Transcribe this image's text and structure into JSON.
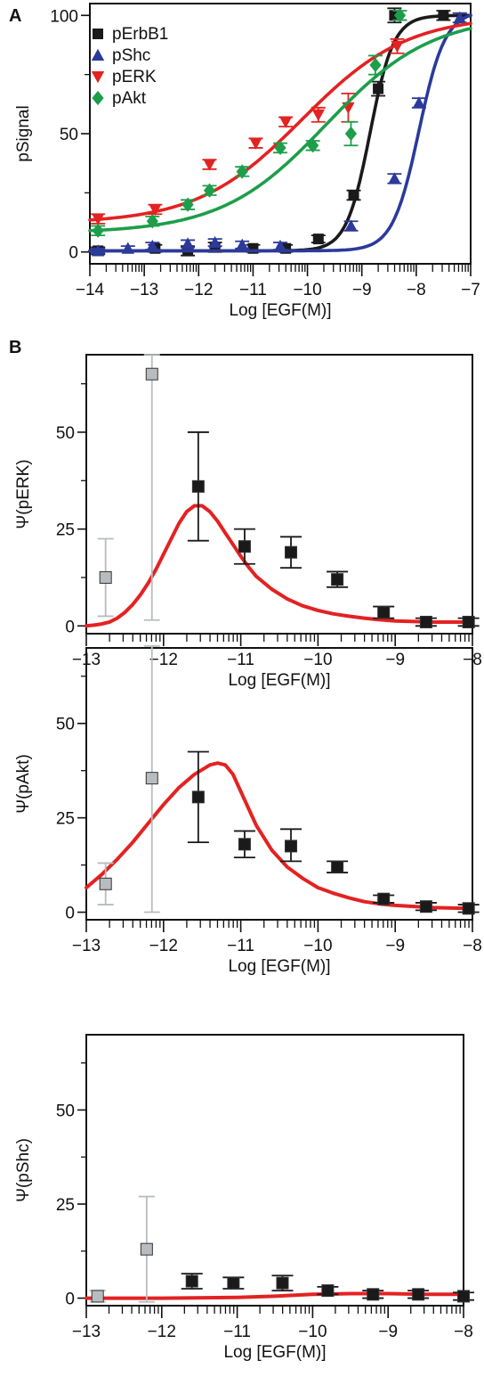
{
  "chart_data": [
    {
      "panel_label": "A",
      "type": "scatter",
      "xlabel": "Log [EGF(M)]",
      "ylabel": "pSignal",
      "xlim": [
        -14,
        -7
      ],
      "ylim": [
        -5,
        105
      ],
      "x_ticks": [
        -14,
        -13,
        -12,
        -11,
        -10,
        -9,
        -8,
        -7
      ],
      "y_ticks": [
        0,
        50,
        100
      ],
      "legend_position": "top-left",
      "series": [
        {
          "name": "pErbB1",
          "color": "#1a1a1a",
          "marker": "square",
          "points": [
            [
              -13.85,
              0.5
            ],
            [
              -12.8,
              1.5
            ],
            [
              -12.2,
              0.5
            ],
            [
              -11.7,
              2
            ],
            [
              -11,
              1.5
            ],
            [
              -10.4,
              1.5
            ],
            [
              -9.8,
              5.5
            ],
            [
              -9.15,
              24
            ],
            [
              -8.7,
              69
            ],
            [
              -8.4,
              100
            ],
            [
              -7.5,
              100
            ]
          ],
          "errors": [
            1.5,
            1.5,
            2,
            2,
            1.5,
            1.5,
            1.5,
            2,
            3,
            3,
            2
          ],
          "fit": {
            "bottom": 0.5,
            "top": 100,
            "logEC50": -8.85,
            "hill": 2.0
          }
        },
        {
          "name": "pShc",
          "color": "#2b3a9b",
          "marker": "triangle-up",
          "points": [
            [
              -13.85,
              0.5
            ],
            [
              -13.3,
              1.5
            ],
            [
              -12.85,
              2.5
            ],
            [
              -12.2,
              3.5
            ],
            [
              -11.7,
              4
            ],
            [
              -11.2,
              3
            ],
            [
              -10.5,
              2.5
            ],
            [
              -9.2,
              11
            ],
            [
              -8.4,
              31
            ],
            [
              -7.95,
              63
            ],
            [
              -7.2,
              99
            ]
          ],
          "errors": [
            1,
            1,
            1.5,
            1.5,
            1.5,
            1.5,
            1.5,
            2,
            2,
            2,
            2
          ],
          "fit": {
            "bottom": 0.5,
            "top": 102,
            "logEC50": -7.95,
            "hill": 1.8
          }
        },
        {
          "name": "pERK",
          "color": "#e32222",
          "marker": "triangle-down",
          "points": [
            [
              -13.85,
              14
            ],
            [
              -12.8,
              18
            ],
            [
              -11.8,
              37
            ],
            [
              -10.95,
              46
            ],
            [
              -10.4,
              55
            ],
            [
              -9.8,
              58
            ],
            [
              -9.25,
              61
            ],
            [
              -8.35,
              87
            ]
          ],
          "errors": [
            2,
            2,
            2,
            2,
            2,
            3,
            6,
            3
          ],
          "fit": {
            "bottom": 12,
            "top": 100,
            "logEC50": -10.1,
            "hill": 0.45
          }
        },
        {
          "name": "pAkt",
          "color": "#1d9e4a",
          "marker": "diamond",
          "points": [
            [
              -13.85,
              9
            ],
            [
              -12.85,
              13
            ],
            [
              -12.2,
              20
            ],
            [
              -11.8,
              26
            ],
            [
              -11.2,
              34
            ],
            [
              -10.5,
              44
            ],
            [
              -9.9,
              45
            ],
            [
              -9.2,
              50
            ],
            [
              -8.75,
              79
            ],
            [
              -8.3,
              100
            ]
          ],
          "errors": [
            2,
            2,
            2,
            2,
            2,
            2,
            2,
            5,
            4,
            2
          ],
          "fit": {
            "bottom": 8,
            "top": 100,
            "logEC50": -9.65,
            "hill": 0.45
          }
        }
      ]
    },
    {
      "panel_label": "B",
      "type": "scatter",
      "xlabel": "Log [EGF(M)]",
      "ylabel": "Ψ(pERK)",
      "xlim": [
        -13,
        -8
      ],
      "ylim": [
        -2,
        70
      ],
      "x_ticks": [
        -13,
        -12,
        -11,
        -10,
        -9,
        -8
      ],
      "y_ticks": [
        0,
        25,
        50
      ],
      "points": [
        [
          -12.75,
          12.5
        ],
        [
          -12.15,
          65
        ],
        [
          -11.55,
          36
        ],
        [
          -10.95,
          20.5
        ],
        [
          -10.35,
          19
        ],
        [
          -9.75,
          12
        ],
        [
          -9.15,
          3.5
        ],
        [
          -8.6,
          1
        ],
        [
          -8.05,
          1
        ]
      ],
      "errors_low": [
        10,
        63.5,
        14,
        4.5,
        4,
        2,
        1.5,
        1,
        1
      ],
      "errors_high": [
        10,
        5,
        14,
        4.5,
        4,
        2,
        1.5,
        1,
        1
      ],
      "point_colors": [
        "#b8bcc0",
        "#b8bcc0",
        "#1a1a1a",
        "#1a1a1a",
        "#1a1a1a",
        "#1a1a1a",
        "#1a1a1a",
        "#1a1a1a",
        "#1a1a1a"
      ],
      "curve": {
        "x": [
          -13,
          -12.9,
          -12.8,
          -12.7,
          -12.6,
          -12.5,
          -12.4,
          -12.3,
          -12.2,
          -12.1,
          -12,
          -11.9,
          -11.8,
          -11.7,
          -11.6,
          -11.5,
          -11.4,
          -11.3,
          -11.2,
          -11.1,
          -11,
          -10.9,
          -10.8,
          -10.6,
          -10.4,
          -10.2,
          -10,
          -9.8,
          -9.6,
          -9.4,
          -9.2,
          -9,
          -8.5,
          -8
        ],
        "y": [
          0,
          0.2,
          0.5,
          1,
          2,
          3.5,
          5.5,
          8,
          11,
          14.5,
          18.5,
          22.5,
          26.5,
          29.5,
          31,
          31,
          29.5,
          27,
          24,
          21,
          18,
          15.2,
          12.8,
          9.5,
          7,
          5.2,
          4,
          3.1,
          2.5,
          2,
          1.6,
          1.3,
          1,
          1
        ],
        "color": "#e32222"
      }
    },
    {
      "type": "scatter",
      "xlabel": "Log [EGF(M)]",
      "ylabel": "Ψ(pAkt)",
      "xlim": [
        -13,
        -8
      ],
      "ylim": [
        -2,
        70
      ],
      "x_ticks": [
        -13,
        -12,
        -11,
        -10,
        -9,
        -8
      ],
      "y_ticks": [
        0,
        25,
        50
      ],
      "points": [
        [
          -12.75,
          7.5
        ],
        [
          -12.15,
          35.5
        ],
        [
          -11.55,
          30.5
        ],
        [
          -10.95,
          18
        ],
        [
          -10.35,
          17.5
        ],
        [
          -9.75,
          12
        ],
        [
          -9.15,
          3.5
        ],
        [
          -8.6,
          1.5
        ],
        [
          -8.05,
          1
        ]
      ],
      "errors_low": [
        5.5,
        35.5,
        12,
        3.5,
        4,
        1.5,
        1,
        1,
        1
      ],
      "errors_high": [
        5.5,
        35,
        12,
        3.5,
        4.5,
        1.5,
        1,
        1,
        1
      ],
      "point_colors": [
        "#b8bcc0",
        "#b8bcc0",
        "#1a1a1a",
        "#1a1a1a",
        "#1a1a1a",
        "#1a1a1a",
        "#1a1a1a",
        "#1a1a1a",
        "#1a1a1a"
      ],
      "curve": {
        "x": [
          -13,
          -12.8,
          -12.6,
          -12.4,
          -12.2,
          -12,
          -11.8,
          -11.6,
          -11.4,
          -11.3,
          -11.2,
          -11.1,
          -11,
          -10.9,
          -10.8,
          -10.6,
          -10.4,
          -10.2,
          -10,
          -9.8,
          -9.6,
          -9.4,
          -9.2,
          -9,
          -8.5,
          -8
        ],
        "y": [
          6.5,
          10,
          14,
          18.5,
          23.5,
          28.5,
          33,
          36.5,
          39,
          39.5,
          39,
          36.5,
          32,
          27.5,
          23,
          16.5,
          12,
          9,
          6.5,
          5,
          3.8,
          2.8,
          2.2,
          1.8,
          1.2,
          1
        ],
        "color": "#e32222"
      }
    },
    {
      "type": "scatter",
      "xlabel": "Log [EGF(M)]",
      "ylabel": "Ψ(pShc)",
      "xlim": [
        -13,
        -8
      ],
      "ylim": [
        -2,
        70
      ],
      "x_ticks": [
        -13,
        -12,
        -11,
        -10,
        -9,
        -8
      ],
      "y_ticks": [
        0,
        25,
        50
      ],
      "points": [
        [
          -12.85,
          0.5
        ],
        [
          -12.2,
          13
        ],
        [
          -11.6,
          4.5
        ],
        [
          -11.05,
          4
        ],
        [
          -10.4,
          4
        ],
        [
          -9.8,
          2
        ],
        [
          -9.2,
          1
        ],
        [
          -8.6,
          1
        ],
        [
          -8,
          0.5
        ]
      ],
      "errors_low": [
        1.5,
        14,
        2,
        1.5,
        2,
        1,
        1,
        1,
        1
      ],
      "errors_high": [
        1.5,
        14,
        2,
        1.5,
        2,
        1,
        1,
        1,
        1
      ],
      "point_colors": [
        "#b8bcc0",
        "#b8bcc0",
        "#1a1a1a",
        "#1a1a1a",
        "#1a1a1a",
        "#1a1a1a",
        "#1a1a1a",
        "#1a1a1a",
        "#1a1a1a"
      ],
      "curve": {
        "x": [
          -13,
          -12,
          -11,
          -10.5,
          -10,
          -9.5,
          -9,
          -8.5,
          -8
        ],
        "y": [
          0,
          0,
          0.2,
          0.5,
          1,
          1.2,
          1.2,
          1,
          1
        ],
        "color": "#e32222"
      }
    }
  ]
}
